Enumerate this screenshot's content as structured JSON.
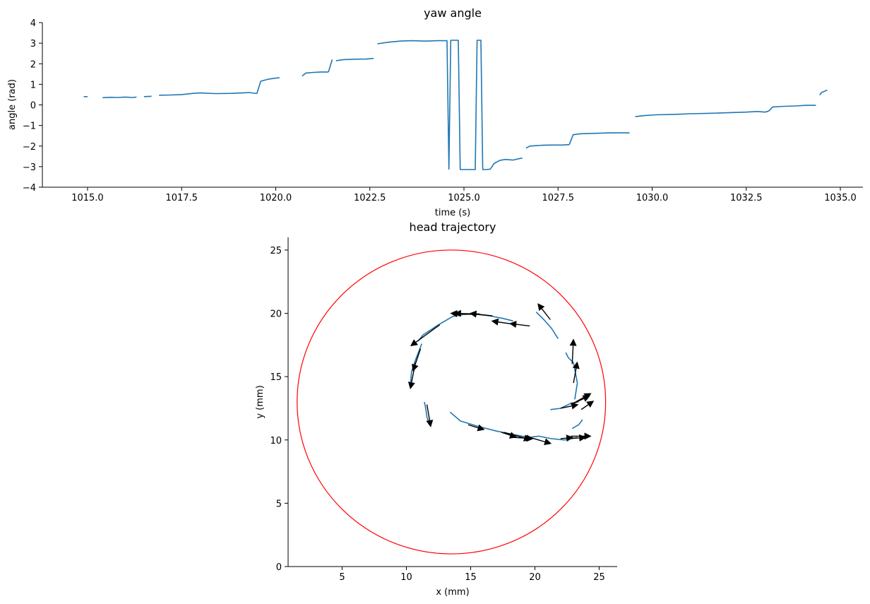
{
  "chart_data": [
    {
      "type": "line",
      "title": "yaw angle",
      "xlabel": "time (s)",
      "ylabel": "angle (rad)",
      "xlim": [
        1013.8,
        1035.6
      ],
      "ylim": [
        -4,
        4
      ],
      "xticks": [
        1015.0,
        1017.5,
        1020.0,
        1022.5,
        1025.0,
        1027.5,
        1030.0,
        1032.5,
        1035.0
      ],
      "yticks": [
        -4,
        -3,
        -2,
        -1,
        0,
        1,
        2,
        3,
        4
      ],
      "xtick_labels": [
        "1015.0",
        "1017.5",
        "1020.0",
        "1022.5",
        "1025.0",
        "1027.5",
        "1030.0",
        "1032.5",
        "1035.0"
      ],
      "ytick_labels": [
        "−4",
        "−3",
        "−2",
        "−1",
        "0",
        "1",
        "2",
        "3",
        "4"
      ],
      "grid": false,
      "line_color": "#1f77b4",
      "segments": [
        [
          [
            1014.9,
            0.4
          ],
          [
            1015.0,
            0.4
          ]
        ],
        [
          [
            1015.4,
            0.35
          ],
          [
            1015.6,
            0.37
          ],
          [
            1015.8,
            0.36
          ],
          [
            1016.0,
            0.38
          ],
          [
            1016.2,
            0.36
          ],
          [
            1016.3,
            0.38
          ]
        ],
        [
          [
            1016.5,
            0.4
          ],
          [
            1016.7,
            0.42
          ]
        ],
        [
          [
            1016.9,
            0.47
          ],
          [
            1017.2,
            0.48
          ],
          [
            1017.5,
            0.5
          ],
          [
            1017.8,
            0.56
          ],
          [
            1018.0,
            0.58
          ],
          [
            1018.4,
            0.55
          ],
          [
            1018.8,
            0.56
          ],
          [
            1019.1,
            0.58
          ],
          [
            1019.3,
            0.6
          ],
          [
            1019.5,
            0.55
          ]
        ],
        [
          [
            1019.5,
            0.55
          ],
          [
            1019.6,
            1.15
          ],
          [
            1019.8,
            1.25
          ],
          [
            1020.0,
            1.3
          ],
          [
            1020.1,
            1.32
          ]
        ],
        [
          [
            1020.7,
            1.4
          ],
          [
            1020.8,
            1.55
          ],
          [
            1021.0,
            1.58
          ],
          [
            1021.2,
            1.6
          ],
          [
            1021.4,
            1.6
          ]
        ],
        [
          [
            1021.4,
            1.6
          ],
          [
            1021.5,
            2.2
          ]
        ],
        [
          [
            1021.6,
            2.15
          ],
          [
            1021.8,
            2.2
          ],
          [
            1022.1,
            2.22
          ],
          [
            1022.4,
            2.23
          ],
          [
            1022.6,
            2.26
          ]
        ],
        [
          [
            1022.7,
            2.97
          ],
          [
            1023.0,
            3.05
          ],
          [
            1023.3,
            3.1
          ],
          [
            1023.6,
            3.12
          ],
          [
            1024.0,
            3.1
          ],
          [
            1024.3,
            3.12
          ],
          [
            1024.5,
            3.12
          ],
          [
            1024.55,
            3.12
          ],
          [
            1024.6,
            -3.12
          ],
          [
            1024.65,
            3.14
          ],
          [
            1024.85,
            3.14
          ],
          [
            1024.9,
            -3.14
          ],
          [
            1025.0,
            -3.14
          ],
          [
            1025.2,
            -3.14
          ],
          [
            1025.3,
            -3.14
          ],
          [
            1025.35,
            3.14
          ],
          [
            1025.45,
            3.14
          ],
          [
            1025.5,
            -3.14
          ],
          [
            1025.6,
            -3.14
          ],
          [
            1025.7,
            -3.12
          ],
          [
            1025.8,
            -2.85
          ],
          [
            1025.95,
            -2.7
          ],
          [
            1026.1,
            -2.65
          ],
          [
            1026.3,
            -2.68
          ],
          [
            1026.5,
            -2.6
          ],
          [
            1026.55,
            -2.6
          ]
        ],
        [
          [
            1026.65,
            -2.1
          ],
          [
            1026.75,
            -2.0
          ],
          [
            1026.9,
            -1.98
          ],
          [
            1027.1,
            -1.96
          ],
          [
            1027.3,
            -1.95
          ],
          [
            1027.6,
            -1.95
          ],
          [
            1027.8,
            -1.93
          ]
        ],
        [
          [
            1027.8,
            -1.93
          ],
          [
            1027.9,
            -1.45
          ],
          [
            1028.1,
            -1.4
          ],
          [
            1028.5,
            -1.38
          ],
          [
            1028.9,
            -1.36
          ],
          [
            1029.2,
            -1.36
          ],
          [
            1029.4,
            -1.36
          ]
        ],
        [
          [
            1029.55,
            -0.57
          ],
          [
            1029.8,
            -0.52
          ],
          [
            1030.1,
            -0.48
          ],
          [
            1030.6,
            -0.46
          ],
          [
            1031.0,
            -0.43
          ],
          [
            1031.5,
            -0.41
          ],
          [
            1032.0,
            -0.38
          ],
          [
            1032.5,
            -0.35
          ],
          [
            1032.8,
            -0.32
          ],
          [
            1033.0,
            -0.35
          ],
          [
            1033.1,
            -0.3
          ]
        ],
        [
          [
            1033.1,
            -0.3
          ],
          [
            1033.2,
            -0.1
          ],
          [
            1033.5,
            -0.07
          ],
          [
            1033.8,
            -0.05
          ],
          [
            1034.1,
            -0.02
          ],
          [
            1034.35,
            -0.02
          ]
        ],
        [
          [
            1034.45,
            0.48
          ],
          [
            1034.5,
            0.6
          ],
          [
            1034.6,
            0.68
          ],
          [
            1034.65,
            0.72
          ]
        ]
      ]
    },
    {
      "type": "line",
      "title": "head trajectory",
      "xlabel": "x (mm)",
      "ylabel": "y (mm)",
      "xlim": [
        0.8,
        26.4
      ],
      "ylim": [
        0,
        26
      ],
      "xticks": [
        5,
        10,
        15,
        20,
        25
      ],
      "yticks": [
        0,
        5,
        10,
        15,
        20,
        25
      ],
      "xtick_labels": [
        "5",
        "10",
        "15",
        "20",
        "25"
      ],
      "ytick_labels": [
        "0",
        "5",
        "10",
        "15",
        "20",
        "25"
      ],
      "grid": false,
      "arena": {
        "center": [
          13.5,
          13.0
        ],
        "radius": 12.0,
        "color": "#ff0000"
      },
      "line_color": "#1f77b4",
      "arrow_color": "#000000",
      "segments": [
        [
          [
            13.4,
            12.2
          ],
          [
            14.2,
            11.5
          ],
          [
            15.5,
            11.1
          ],
          [
            17.0,
            10.7
          ],
          [
            18.5,
            10.4
          ],
          [
            19.5,
            10.2
          ],
          [
            20.3,
            10.3
          ],
          [
            21.3,
            10.1
          ],
          [
            22.3,
            10.0
          ],
          [
            23.3,
            10.2
          ]
        ],
        [
          [
            22.9,
            10.9
          ],
          [
            23.4,
            11.2
          ],
          [
            23.7,
            11.6
          ]
        ],
        [
          [
            21.2,
            12.4
          ],
          [
            22.0,
            12.5
          ],
          [
            22.8,
            12.9
          ],
          [
            23.4,
            13.0
          ]
        ],
        [
          [
            22.4,
            16.9
          ],
          [
            22.6,
            16.5
          ],
          [
            23.0,
            16.1
          ],
          [
            23.3,
            14.5
          ],
          [
            23.1,
            13.2
          ]
        ],
        [
          [
            21.8,
            18.0
          ],
          [
            21.3,
            18.8
          ],
          [
            20.7,
            19.5
          ],
          [
            20.1,
            20.1
          ]
        ],
        [
          [
            18.3,
            19.4
          ],
          [
            17.5,
            19.6
          ],
          [
            16.5,
            19.8
          ],
          [
            15.2,
            19.95
          ],
          [
            14.4,
            19.9
          ],
          [
            13.6,
            19.75
          ],
          [
            12.5,
            19.1
          ],
          [
            11.3,
            18.3
          ],
          [
            10.9,
            17.8
          ]
        ],
        [
          [
            10.3,
            14.2
          ],
          [
            10.4,
            15.4
          ],
          [
            10.7,
            16.3
          ],
          [
            11.2,
            17.6
          ]
        ],
        [
          [
            11.4,
            13.0
          ],
          [
            11.5,
            12.5
          ],
          [
            11.6,
            11.8
          ],
          [
            11.8,
            11.2
          ]
        ]
      ],
      "arrows": [
        [
          [
            18.6,
            19.1
          ],
          [
            16.6,
            19.4
          ]
        ],
        [
          [
            16.7,
            19.8
          ],
          [
            14.9,
            20.0
          ]
        ],
        [
          [
            15.7,
            19.95
          ],
          [
            13.7,
            20.0
          ]
        ],
        [
          [
            15.5,
            19.9
          ],
          [
            13.4,
            20.0
          ]
        ],
        [
          [
            12.6,
            19.1
          ],
          [
            10.3,
            17.4
          ]
        ],
        [
          [
            11.1,
            17.2
          ],
          [
            10.5,
            15.4
          ]
        ],
        [
          [
            10.7,
            16.1
          ],
          [
            10.3,
            14.0
          ]
        ],
        [
          [
            11.6,
            12.8
          ],
          [
            11.9,
            11.0
          ]
        ],
        [
          [
            14.8,
            11.2
          ],
          [
            16.1,
            10.8
          ]
        ],
        [
          [
            17.4,
            10.6
          ],
          [
            18.6,
            10.2
          ]
        ],
        [
          [
            17.6,
            10.6
          ],
          [
            19.7,
            10.0
          ]
        ],
        [
          [
            18.3,
            10.2
          ],
          [
            19.9,
            10.1
          ]
        ],
        [
          [
            19.6,
            10.2
          ],
          [
            21.3,
            9.7
          ]
        ],
        [
          [
            22.0,
            10.1
          ],
          [
            23.0,
            10.2
          ]
        ],
        [
          [
            22.6,
            10.1
          ],
          [
            24.0,
            10.2
          ]
        ],
        [
          [
            22.8,
            10.3
          ],
          [
            24.4,
            10.3
          ]
        ],
        [
          [
            22.0,
            12.5
          ],
          [
            23.4,
            12.8
          ]
        ],
        [
          [
            22.8,
            12.8
          ],
          [
            24.3,
            13.5
          ]
        ],
        [
          [
            23.0,
            12.9
          ],
          [
            24.4,
            13.7
          ]
        ],
        [
          [
            23.6,
            12.4
          ],
          [
            24.6,
            13.1
          ]
        ],
        [
          [
            23.0,
            14.5
          ],
          [
            23.3,
            16.2
          ]
        ],
        [
          [
            22.9,
            16.0
          ],
          [
            23.0,
            18.0
          ]
        ],
        [
          [
            21.2,
            19.5
          ],
          [
            20.2,
            20.8
          ]
        ],
        [
          [
            19.6,
            19.0
          ],
          [
            18.0,
            19.2
          ]
        ]
      ]
    }
  ]
}
